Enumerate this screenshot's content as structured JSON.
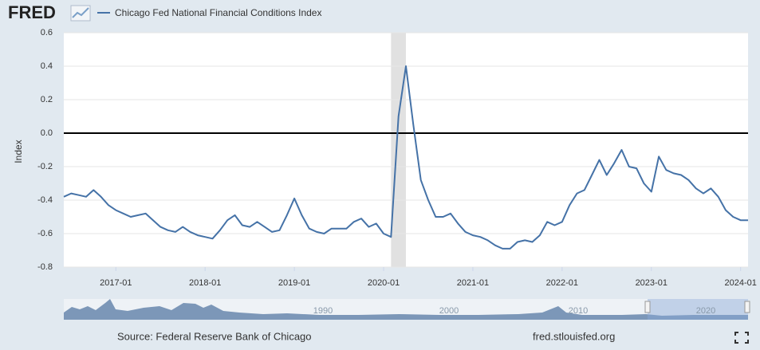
{
  "header": {
    "logo": "FRED"
  },
  "chart_data": {
    "type": "line",
    "y_label": "Index",
    "x": [
      "2016-06",
      "2016-07",
      "2016-08",
      "2016-09",
      "2016-10",
      "2016-11",
      "2016-12",
      "2017-01",
      "2017-02",
      "2017-03",
      "2017-04",
      "2017-05",
      "2017-06",
      "2017-07",
      "2017-08",
      "2017-09",
      "2017-10",
      "2017-11",
      "2017-12",
      "2018-01",
      "2018-02",
      "2018-03",
      "2018-04",
      "2018-05",
      "2018-06",
      "2018-07",
      "2018-08",
      "2018-09",
      "2018-10",
      "2018-11",
      "2018-12",
      "2019-01",
      "2019-02",
      "2019-03",
      "2019-04",
      "2019-05",
      "2019-06",
      "2019-07",
      "2019-08",
      "2019-09",
      "2019-10",
      "2019-11",
      "2019-12",
      "2020-01",
      "2020-02",
      "2020-03",
      "2020-04",
      "2020-05",
      "2020-06",
      "2020-07",
      "2020-08",
      "2020-09",
      "2020-10",
      "2020-11",
      "2020-12",
      "2021-01",
      "2021-02",
      "2021-03",
      "2021-04",
      "2021-05",
      "2021-06",
      "2021-07",
      "2021-08",
      "2021-09",
      "2021-10",
      "2021-11",
      "2021-12",
      "2022-01",
      "2022-02",
      "2022-03",
      "2022-04",
      "2022-05",
      "2022-06",
      "2022-07",
      "2022-08",
      "2022-09",
      "2022-10",
      "2022-11",
      "2022-12",
      "2023-01",
      "2023-02",
      "2023-03",
      "2023-04",
      "2023-05",
      "2023-06",
      "2023-07",
      "2023-08",
      "2023-09",
      "2023-10",
      "2023-11",
      "2023-12",
      "2024-01",
      "2024-02"
    ],
    "series": [
      {
        "name": "Chicago Fed National Financial Conditions Index",
        "color": "#4572a7",
        "values": [
          -0.38,
          -0.36,
          -0.37,
          -0.38,
          -0.34,
          -0.38,
          -0.43,
          -0.46,
          -0.48,
          -0.5,
          -0.49,
          -0.48,
          -0.52,
          -0.56,
          -0.58,
          -0.59,
          -0.56,
          -0.59,
          -0.61,
          -0.62,
          -0.63,
          -0.58,
          -0.52,
          -0.49,
          -0.55,
          -0.56,
          -0.53,
          -0.56,
          -0.59,
          -0.58,
          -0.49,
          -0.39,
          -0.49,
          -0.57,
          -0.59,
          -0.6,
          -0.57,
          -0.57,
          -0.57,
          -0.53,
          -0.51,
          -0.56,
          -0.54,
          -0.6,
          -0.62,
          0.1,
          0.4,
          0.05,
          -0.28,
          -0.4,
          -0.5,
          -0.5,
          -0.48,
          -0.54,
          -0.59,
          -0.61,
          -0.62,
          -0.64,
          -0.67,
          -0.69,
          -0.69,
          -0.65,
          -0.64,
          -0.65,
          -0.61,
          -0.53,
          -0.55,
          -0.53,
          -0.43,
          -0.36,
          -0.34,
          -0.25,
          -0.16,
          -0.25,
          -0.18,
          -0.1,
          -0.2,
          -0.21,
          -0.3,
          -0.35,
          -0.14,
          -0.22,
          -0.24,
          -0.25,
          -0.28,
          -0.33,
          -0.36,
          -0.33,
          -0.38,
          -0.46,
          -0.5,
          -0.52,
          -0.52
        ]
      }
    ],
    "xlim": [
      "2016-06",
      "2024-02"
    ],
    "xticks": [
      "2017-01",
      "2018-01",
      "2019-01",
      "2020-01",
      "2021-01",
      "2022-01",
      "2023-01",
      "2024-01"
    ],
    "ylim": [
      -0.8,
      0.6
    ],
    "yticks": [
      0.6,
      0.4,
      0.2,
      {
        "value": 0,
        "label": "0.0"
      },
      -0.2,
      -0.4,
      -0.6,
      -0.8
    ],
    "grid": true,
    "recessions": [
      {
        "start": "2020-02",
        "end": "2020-04"
      }
    ]
  },
  "navigator": {
    "labels": [
      "1990",
      "2000",
      "2010",
      "2020"
    ]
  },
  "footer": {
    "source": "Source: Federal Reserve Bank of Chicago",
    "site": "fred.stlouisfed.org"
  }
}
